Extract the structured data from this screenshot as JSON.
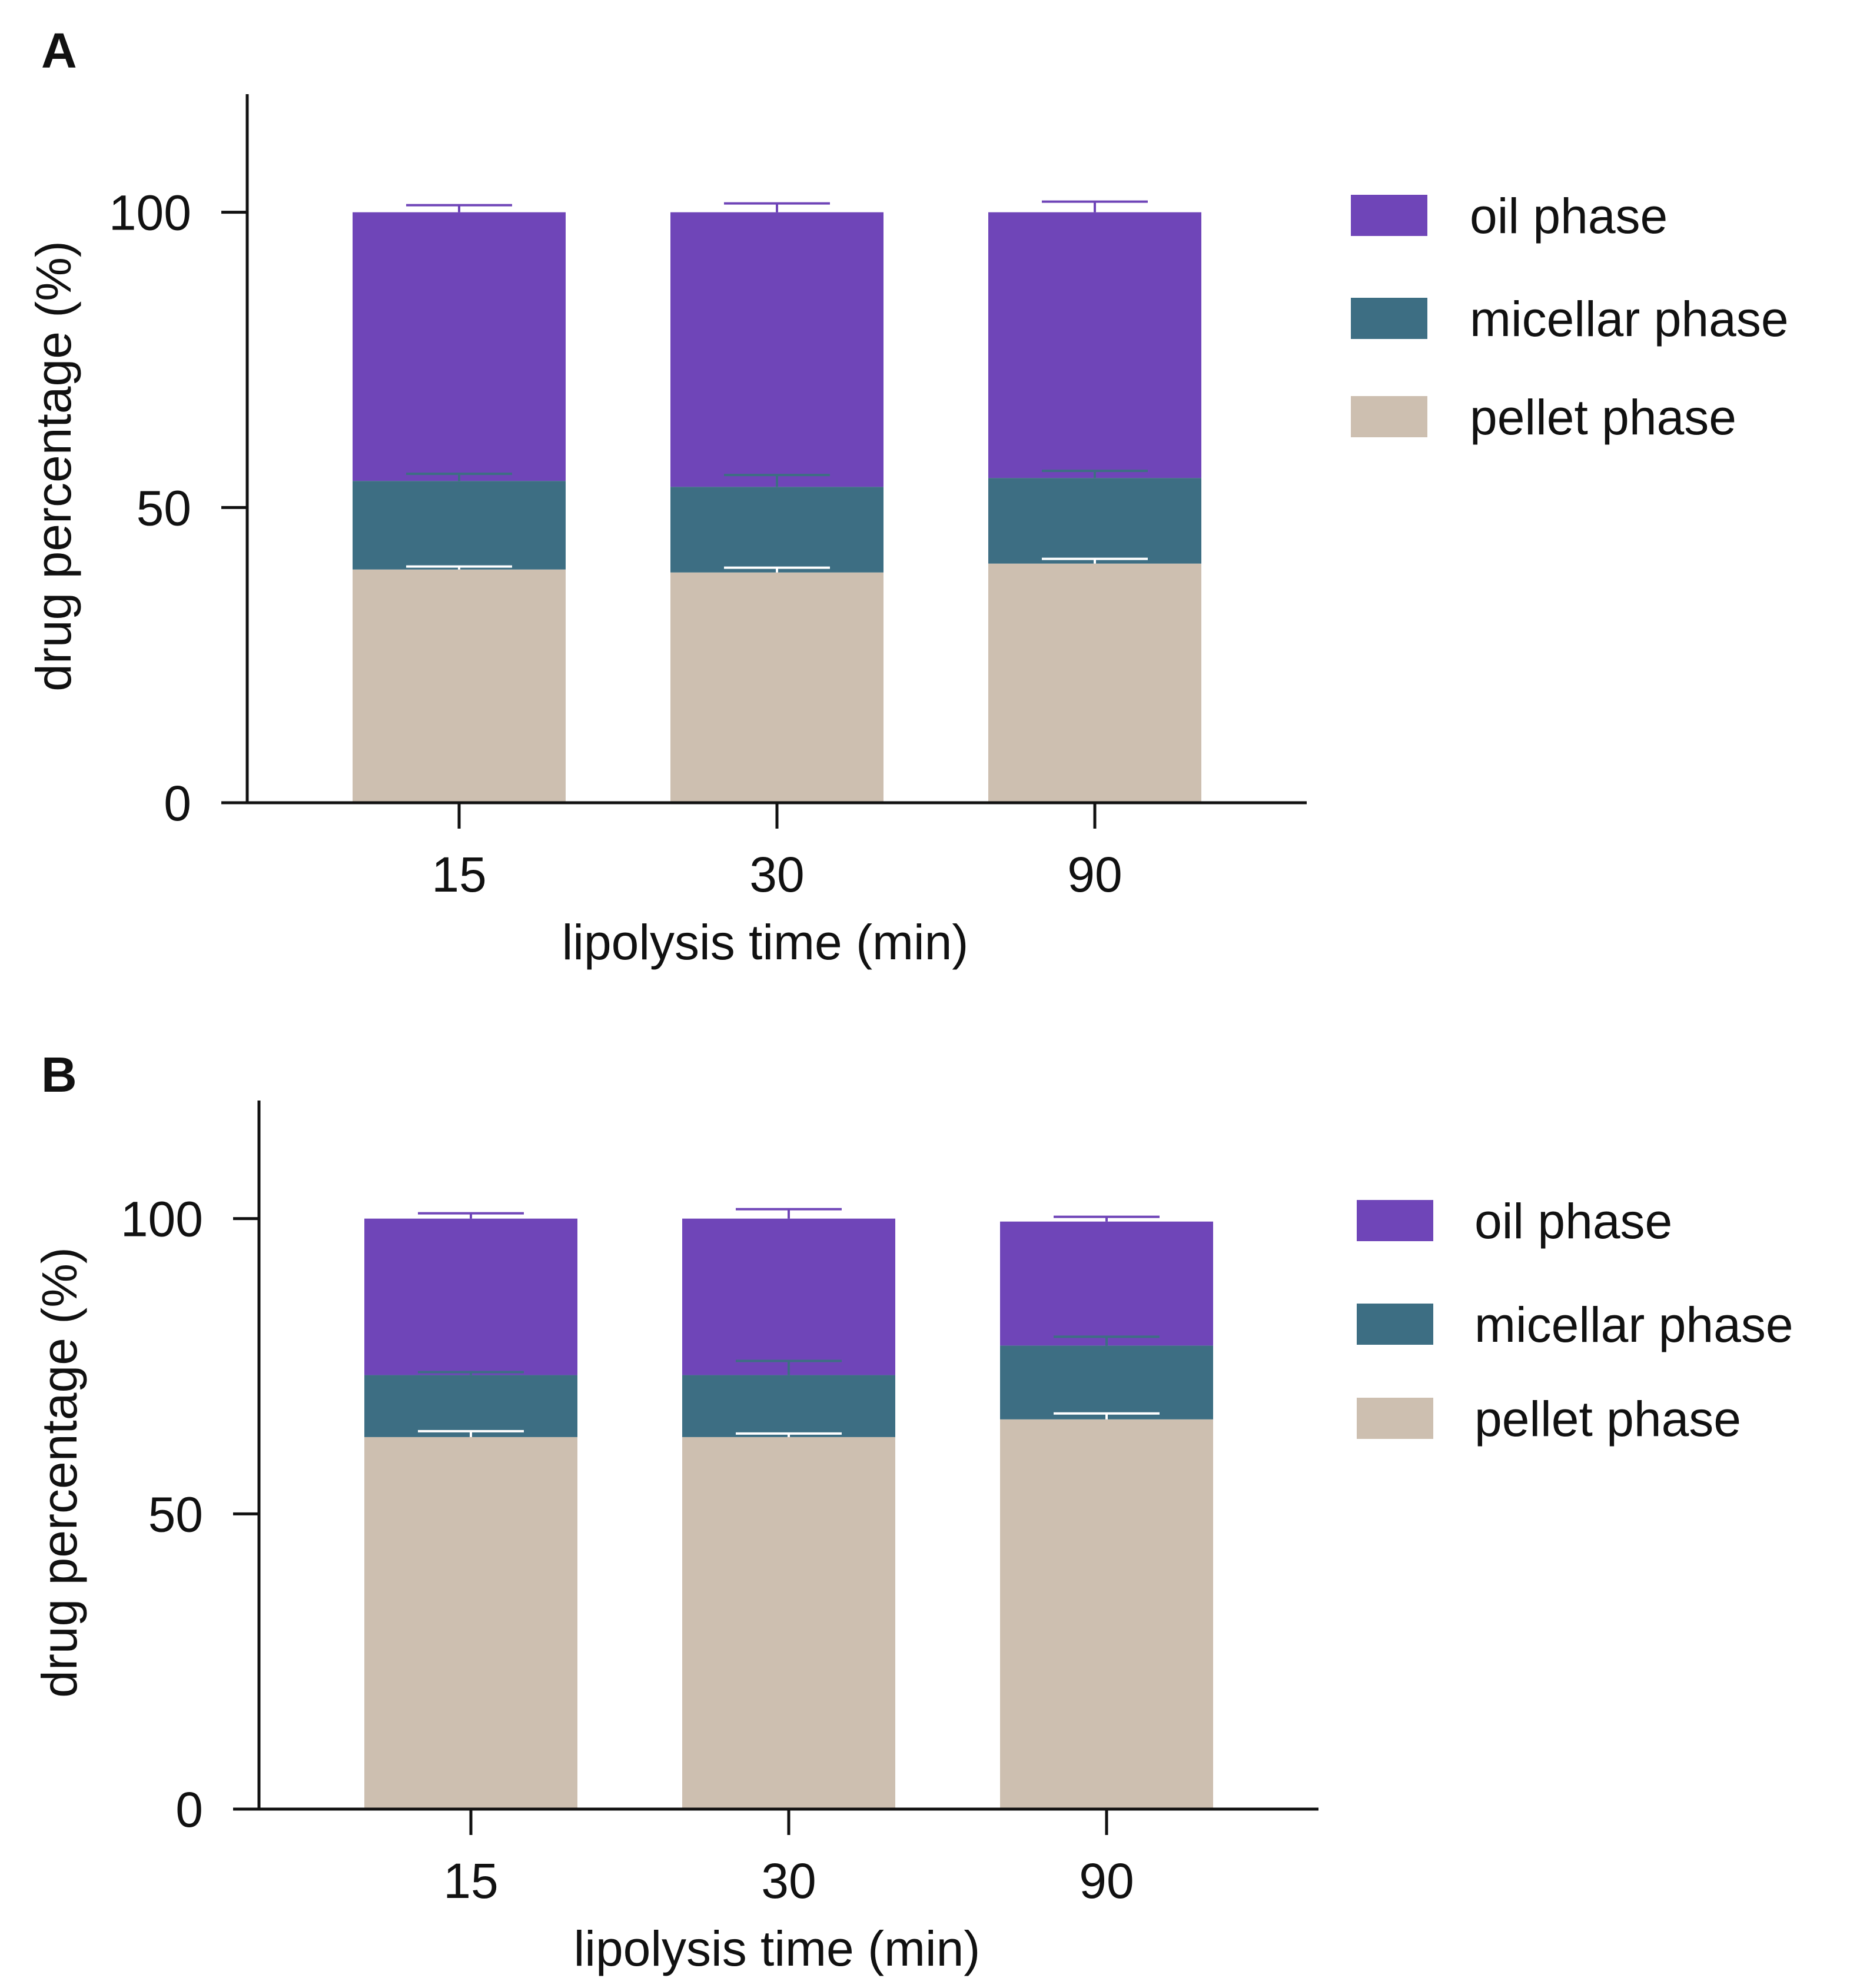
{
  "figure": {
    "colors": {
      "oil": "#6f45b8",
      "micellar": "#3d6e83",
      "pellet": "#cdbfb0",
      "axis": "#111111"
    }
  },
  "chart_data": [
    {
      "panel": "A",
      "type": "bar",
      "stacked": true,
      "categories": [
        "15",
        "30",
        "90"
      ],
      "xlabel": "lipolysis time (min)",
      "ylabel": "drug percentage (%)",
      "ylim": [
        0,
        120
      ],
      "yticks": [
        0,
        50,
        100
      ],
      "grid": false,
      "legend_position": "right",
      "series": [
        {
          "name": "pellet phase",
          "color": "#cdbfb0",
          "values": [
            39.5,
            39,
            40.5
          ],
          "errors": [
            0.5,
            0.8,
            0.8
          ]
        },
        {
          "name": "micellar phase",
          "color": "#3d6e83",
          "values": [
            15,
            14.5,
            14.5
          ],
          "errors": [
            1.2,
            2,
            1.2
          ]
        },
        {
          "name": "oil phase",
          "color": "#6f45b8",
          "values": [
            45.5,
            46.5,
            45
          ],
          "errors": [
            1.2,
            1.5,
            1.8
          ]
        }
      ]
    },
    {
      "panel": "B",
      "type": "bar",
      "stacked": true,
      "categories": [
        "15",
        "30",
        "90"
      ],
      "xlabel": "lipolysis time (min)",
      "ylabel": "drug percentage (%)",
      "ylim": [
        0,
        120
      ],
      "yticks": [
        0,
        50,
        100
      ],
      "grid": false,
      "legend_position": "right",
      "series": [
        {
          "name": "pellet phase",
          "color": "#cdbfb0",
          "values": [
            63,
            63,
            66
          ],
          "errors": [
            1,
            0.6,
            1
          ]
        },
        {
          "name": "micellar phase",
          "color": "#3d6e83",
          "values": [
            10.5,
            10.5,
            12.5
          ],
          "errors": [
            0.5,
            2.4,
            1.5
          ]
        },
        {
          "name": "oil phase",
          "color": "#6f45b8",
          "values": [
            26.5,
            26.5,
            21
          ],
          "errors": [
            0.9,
            1.6,
            0.8
          ]
        }
      ]
    }
  ]
}
